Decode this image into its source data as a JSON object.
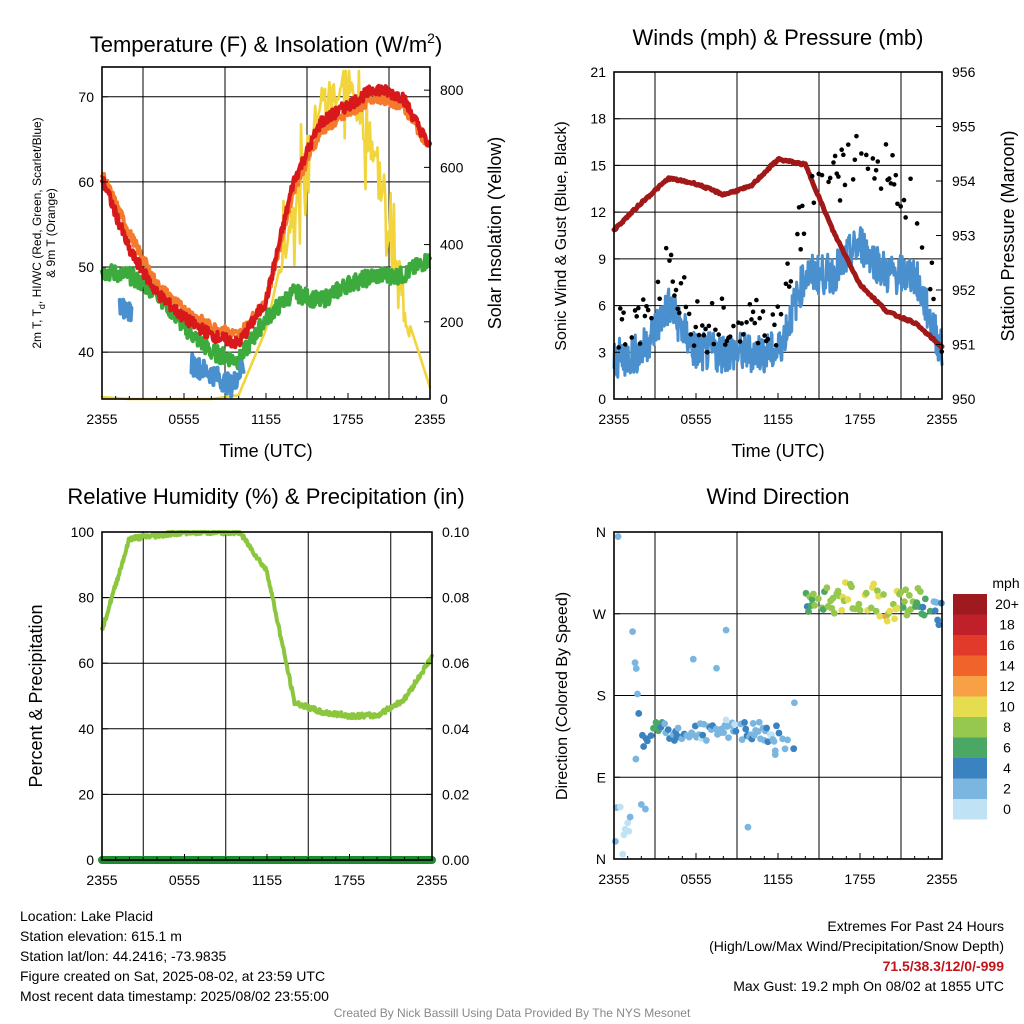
{
  "panels": {
    "temp": {
      "title_main": "Temperature (F) & Insolation (W/m",
      "title_sup": "2",
      "title_tail": ")",
      "xlabel": "Time (UTC)",
      "ylabel_left_line1": "2m T, T",
      "ylabel_left_sub": "d",
      "ylabel_left_line1_tail": ", HI/WC (Red, Green, Scarlet/Blue)",
      "ylabel_left_line2": "& 9m T (Orange)",
      "ylabel_right": "Solar Insolation (Yellow)",
      "left_ticks": [
        "40",
        "50",
        "60",
        "70"
      ],
      "right_ticks": [
        "0",
        "200",
        "400",
        "600",
        "800"
      ]
    },
    "wind": {
      "title": "Winds (mph) & Pressure (mb)",
      "xlabel": "Time (UTC)",
      "ylabel_left": "Sonic Wind & Gust (Blue, Black)",
      "ylabel_right": "Station Pressure (Maroon)",
      "left_ticks": [
        "0",
        "3",
        "6",
        "9",
        "12",
        "15",
        "18",
        "21"
      ],
      "right_ticks": [
        "950",
        "951",
        "952",
        "953",
        "954",
        "955",
        "956"
      ]
    },
    "rh": {
      "title": "Relative Humidity (%) & Precipitation (in)",
      "ylabel_left": "Percent & Precipitation",
      "left_ticks": [
        "0",
        "20",
        "40",
        "60",
        "80",
        "100"
      ],
      "right_ticks": [
        "0.00",
        "0.02",
        "0.04",
        "0.06",
        "0.08",
        "0.10"
      ]
    },
    "dir": {
      "title": "Wind Direction",
      "ylabel_left": "Direction (Colored By Speed)",
      "left_ticks": [
        "N",
        "E",
        "S",
        "W",
        "N"
      ],
      "legend_title": "mph",
      "legend_labels": [
        "20+",
        "18",
        "16",
        "14",
        "12",
        "10",
        "8",
        "6",
        "4",
        "2",
        "0"
      ],
      "legend_colors": [
        "#9e1a1f",
        "#c0202a",
        "#e23a2a",
        "#f0642c",
        "#f8a046",
        "#e6dc50",
        "#96c850",
        "#4aa864",
        "#3a82c0",
        "#7ab6e0",
        "#bfe3f5"
      ]
    }
  },
  "x_tick_labels": [
    "2355",
    "0555",
    "1155",
    "1755",
    "2355"
  ],
  "info": {
    "location": "Location: Lake Placid",
    "elevation": "Station elevation: 615.1 m",
    "latlon": "Station lat/lon: 44.2416; -73.9835",
    "created": "Figure created on Sat, 2025-08-02, at 23:59 UTC",
    "recent": "Most recent data timestamp: 2025/08/02 23:55:00"
  },
  "extremes": {
    "title": "Extremes For Past 24 Hours",
    "subtitle": "(High/Low/Max Wind/Precipitation/Snow Depth)",
    "values": "71.5/38.3/12/0/-999",
    "gust": "Max Gust: 19.2 mph On 08/02 at 1855 UTC"
  },
  "credit": "Created By Nick Bassill Using Data Provided By The NYS Mesonet",
  "chart_data": [
    {
      "type": "line",
      "name": "temperature",
      "x": [
        0,
        2,
        4,
        6,
        8,
        10,
        12,
        14,
        16,
        18,
        20,
        22,
        24
      ],
      "series": [
        {
          "name": "2m T",
          "color": "#d7191c",
          "values": [
            60.5,
            52,
            47,
            44,
            42,
            41,
            46,
            60,
            67,
            69,
            71,
            70,
            64
          ]
        },
        {
          "name": "9m T",
          "color": "#f47b2c",
          "values": [
            61,
            54,
            48,
            45,
            43,
            42,
            46,
            59,
            66,
            68,
            70,
            69,
            64
          ]
        },
        {
          "name": "Td",
          "color": "#3caa3c",
          "values": [
            49.5,
            49,
            47,
            43,
            40,
            39,
            44,
            47,
            46,
            48,
            49,
            49,
            51
          ]
        },
        {
          "name": "Insolation",
          "color": "#f2d43d",
          "values": [
            5,
            0,
            0,
            0,
            0,
            10,
            180,
            500,
            780,
            820,
            640,
            250,
            30
          ]
        }
      ],
      "ylim": [
        34.5,
        73.5
      ],
      "y2lim": [
        0,
        860
      ]
    },
    {
      "type": "line",
      "name": "winds",
      "x": [
        0,
        2,
        4,
        6,
        8,
        10,
        12,
        14,
        16,
        18,
        20,
        22,
        24
      ],
      "series": [
        {
          "name": "Sonic Wind",
          "color": "#4a90cf",
          "values": [
            2.5,
            3,
            6,
            3,
            3,
            3,
            3,
            8,
            8,
            10,
            8,
            8,
            3
          ]
        },
        {
          "name": "Gust",
          "color": "#000000",
          "values": [
            3.5,
            4,
            8,
            4,
            4,
            4,
            4,
            12,
            13,
            15,
            14,
            12,
            4
          ]
        },
        {
          "name": "Station Pressure",
          "color": "#a11818",
          "values": [
            953.1,
            953.6,
            954.05,
            953.95,
            953.75,
            953.9,
            954.4,
            954.3,
            953.1,
            952.1,
            951.6,
            951.4,
            950.95
          ]
        }
      ],
      "ylim": [
        0,
        21
      ],
      "y2lim": [
        950,
        956
      ]
    },
    {
      "type": "line",
      "name": "relative-humidity",
      "x": [
        0,
        2,
        4,
        6,
        8,
        10,
        12,
        14,
        16,
        18,
        20,
        22,
        24
      ],
      "series": [
        {
          "name": "RH",
          "color": "#8cc63f",
          "values": [
            70,
            98,
            99,
            100,
            100,
            100,
            88,
            48,
            45,
            44,
            44,
            49,
            62
          ]
        },
        {
          "name": "Precipitation",
          "color": "#1d8c2e",
          "values": [
            0,
            0,
            0,
            0,
            0,
            0,
            0,
            0,
            0,
            0,
            0,
            0,
            0
          ]
        }
      ],
      "ylim": [
        0,
        100
      ],
      "y2lim": [
        0,
        0.1
      ]
    },
    {
      "type": "scatter",
      "name": "wind-direction",
      "x": [
        0.2,
        0.5,
        1,
        2,
        3,
        4,
        5,
        6,
        7,
        8,
        9,
        10,
        11,
        12.5,
        13,
        14,
        15,
        16,
        17,
        18,
        19,
        20,
        21,
        22,
        23,
        23.8
      ],
      "values": [
        15,
        40,
        330,
        130,
        145,
        140,
        140,
        143,
        138,
        145,
        140,
        142,
        140,
        110,
        270,
        280,
        285,
        283,
        290,
        285,
        288,
        275,
        282,
        285,
        280,
        270
      ],
      "speeds": [
        2,
        1,
        1,
        4,
        6,
        3,
        3,
        2,
        3,
        2,
        2,
        3,
        2,
        2,
        4,
        6,
        8,
        8,
        9,
        8,
        9,
        10,
        8,
        8,
        4,
        4
      ],
      "ylim": [
        0,
        360
      ]
    }
  ]
}
